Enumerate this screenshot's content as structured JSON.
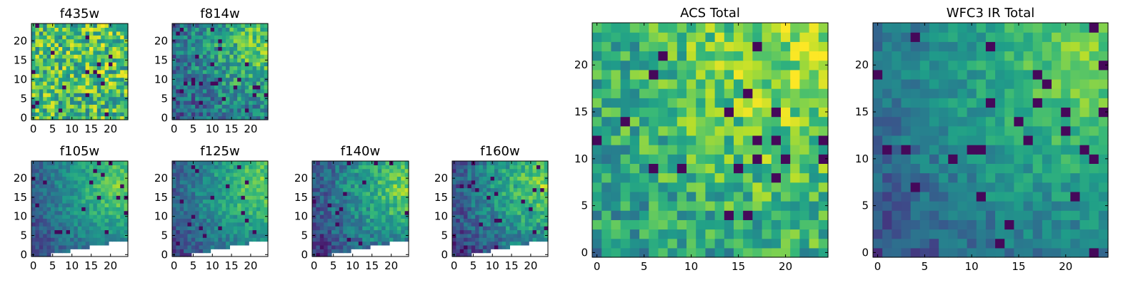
{
  "chart_data": [
    {
      "type": "heatmap",
      "title": "f435w",
      "colormap": "viridis",
      "grid": false,
      "xlim": [
        -0.5,
        24.5
      ],
      "ylim": [
        -0.5,
        24.5
      ],
      "xticks": [
        0,
        5,
        10,
        15,
        20
      ],
      "yticks": [
        0,
        5,
        10,
        15,
        20
      ],
      "field": {
        "rows": 25,
        "cols": 25,
        "gradient_peak": [
          20,
          18
        ],
        "gradient_strength": 0.05,
        "base": 0.66,
        "noise": 0.3,
        "masked_region": "none"
      }
    },
    {
      "type": "heatmap",
      "title": "f814w",
      "colormap": "viridis",
      "grid": false,
      "xlim": [
        -0.5,
        24.5
      ],
      "ylim": [
        -0.5,
        24.5
      ],
      "xticks": [
        0,
        5,
        10,
        15,
        20
      ],
      "yticks": [
        0,
        5,
        10,
        15,
        20
      ],
      "field": {
        "rows": 25,
        "cols": 25,
        "gradient_peak": [
          23,
          19
        ],
        "gradient_strength": 0.55,
        "base": 0.22,
        "noise": 0.22,
        "masked_region": "none"
      }
    },
    {
      "type": "heatmap",
      "title": "f105w",
      "colormap": "viridis",
      "grid": false,
      "xlim": [
        -0.5,
        24.5
      ],
      "ylim": [
        -0.5,
        24.5
      ],
      "xticks": [
        0,
        5,
        10,
        15,
        20
      ],
      "yticks": [
        0,
        5,
        10,
        15,
        20
      ],
      "field": {
        "rows": 25,
        "cols": 25,
        "gradient_peak": [
          23,
          18
        ],
        "gradient_strength": 0.65,
        "base": 0.15,
        "noise": 0.12,
        "masked_region": "lower-right wedge"
      }
    },
    {
      "type": "heatmap",
      "title": "f125w",
      "colormap": "viridis",
      "grid": false,
      "xlim": [
        -0.5,
        24.5
      ],
      "ylim": [
        -0.5,
        24.5
      ],
      "xticks": [
        0,
        5,
        10,
        15,
        20
      ],
      "yticks": [
        0,
        5,
        10,
        15,
        20
      ],
      "field": {
        "rows": 25,
        "cols": 25,
        "gradient_peak": [
          23,
          18
        ],
        "gradient_strength": 0.65,
        "base": 0.15,
        "noise": 0.13,
        "masked_region": "lower-right wedge"
      }
    },
    {
      "type": "heatmap",
      "title": "f140w",
      "colormap": "viridis",
      "grid": false,
      "xlim": [
        -0.5,
        24.5
      ],
      "ylim": [
        -0.5,
        24.5
      ],
      "xticks": [
        0,
        5,
        10,
        15,
        20
      ],
      "yticks": [
        0,
        5,
        10,
        15,
        20
      ],
      "field": {
        "rows": 25,
        "cols": 25,
        "gradient_peak": [
          23,
          18
        ],
        "gradient_strength": 0.7,
        "base": 0.1,
        "noise": 0.16,
        "masked_region": "lower-right wedge"
      }
    },
    {
      "type": "heatmap",
      "title": "f160w",
      "colormap": "viridis",
      "grid": false,
      "xlim": [
        -0.5,
        24.5
      ],
      "ylim": [
        -0.5,
        24.5
      ],
      "xticks": [
        0,
        5,
        10,
        15,
        20
      ],
      "yticks": [
        0,
        5,
        10,
        15,
        20
      ],
      "field": {
        "rows": 25,
        "cols": 25,
        "gradient_peak": [
          23,
          18
        ],
        "gradient_strength": 0.7,
        "base": 0.1,
        "noise": 0.16,
        "masked_region": "lower-right wedge"
      }
    },
    {
      "type": "heatmap",
      "title": "ACS Total",
      "colormap": "viridis",
      "grid": false,
      "xlim": [
        -0.5,
        24.5
      ],
      "ylim": [
        -0.5,
        24.5
      ],
      "xticks": [
        0,
        5,
        10,
        15,
        20
      ],
      "yticks": [
        0,
        5,
        10,
        15,
        20
      ],
      "field": {
        "rows": 25,
        "cols": 25,
        "gradient_peak": [
          22,
          20
        ],
        "gradient_strength": 0.35,
        "base": 0.5,
        "noise": 0.22,
        "masked_region": "none"
      }
    },
    {
      "type": "heatmap",
      "title": "WFC3 IR Total",
      "colormap": "viridis",
      "grid": false,
      "xlim": [
        -0.5,
        24.5
      ],
      "ylim": [
        -0.5,
        24.5
      ],
      "xticks": [
        0,
        5,
        10,
        15,
        20
      ],
      "yticks": [
        0,
        5,
        10,
        15,
        20
      ],
      "field": {
        "rows": 25,
        "cols": 25,
        "gradient_peak": [
          23,
          20
        ],
        "gradient_strength": 0.6,
        "base": 0.22,
        "noise": 0.12,
        "masked_region": "none"
      }
    }
  ]
}
